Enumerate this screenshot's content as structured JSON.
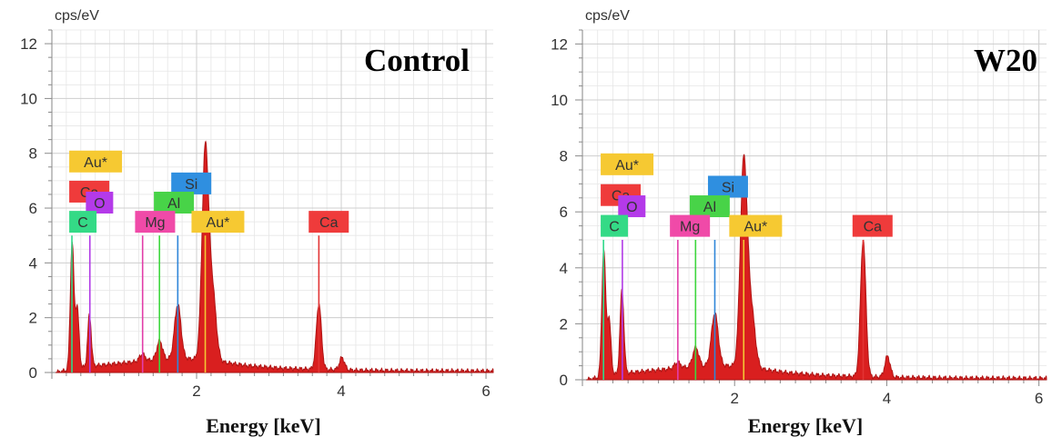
{
  "chart_data": [
    {
      "type": "line",
      "title": "Control",
      "xlabel": "Energy [keV]",
      "ylabel": "cps/eV",
      "xlim": [
        0,
        6.1
      ],
      "ylim": [
        0,
        12.5
      ],
      "xticks": [
        2,
        4,
        6
      ],
      "yticks": [
        0,
        2,
        4,
        6,
        8,
        10,
        12
      ],
      "grid": true,
      "series_color": "#d91f1f",
      "spectrum": {
        "baseline": [
          [
            0.05,
            0.0
          ],
          [
            0.25,
            0.1
          ],
          [
            0.6,
            0.25
          ],
          [
            1.0,
            0.35
          ],
          [
            1.4,
            0.45
          ],
          [
            1.9,
            0.5
          ],
          [
            2.3,
            0.4
          ],
          [
            2.7,
            0.25
          ],
          [
            3.2,
            0.15
          ],
          [
            3.6,
            0.12
          ],
          [
            4.2,
            0.08
          ],
          [
            5.0,
            0.06
          ],
          [
            6.1,
            0.05
          ]
        ],
        "peaks": [
          {
            "x": 0.28,
            "height": 4.6,
            "width": 0.025
          },
          {
            "x": 0.35,
            "height": 2.2,
            "width": 0.025
          },
          {
            "x": 0.52,
            "height": 1.9,
            "width": 0.025
          },
          {
            "x": 1.25,
            "height": 0.25,
            "width": 0.04
          },
          {
            "x": 1.49,
            "height": 0.7,
            "width": 0.04
          },
          {
            "x": 1.74,
            "height": 2.0,
            "width": 0.045
          },
          {
            "x": 2.12,
            "height": 7.6,
            "width": 0.045
          },
          {
            "x": 2.22,
            "height": 2.5,
            "width": 0.05
          },
          {
            "x": 3.69,
            "height": 2.4,
            "width": 0.035
          },
          {
            "x": 4.01,
            "height": 0.45,
            "width": 0.035
          }
        ]
      },
      "element_lines": [
        {
          "label": "C",
          "x": 0.277,
          "height": 5.0,
          "color": "#2fd98a"
        },
        {
          "label": "O",
          "x": 0.525,
          "height": 5.0,
          "color": "#b13ae6"
        },
        {
          "label": "Mg",
          "x": 1.254,
          "height": 5.0,
          "color": "#e23ea9"
        },
        {
          "label": "Al",
          "x": 1.487,
          "height": 5.0,
          "color": "#3ed63e"
        },
        {
          "label": "Si",
          "x": 1.74,
          "height": 5.0,
          "color": "#2f86d9"
        },
        {
          "label": "Au*",
          "x": 2.12,
          "height": 5.0,
          "color": "#f3c733"
        },
        {
          "label": "Ca",
          "x": 3.69,
          "height": 5.0,
          "color": "#e23434"
        }
      ],
      "tags": [
        {
          "label": "Au*",
          "x": 0.24,
          "y": 7.7,
          "color": "#f6c932"
        },
        {
          "label": "Ca",
          "x": 0.24,
          "y": 6.6,
          "color": "#ef3b3b"
        },
        {
          "label": "O",
          "x": 0.47,
          "y": 6.2,
          "color": "#b43ae9"
        },
        {
          "label": "C",
          "x": 0.24,
          "y": 5.5,
          "color": "#34da86"
        },
        {
          "label": "Si",
          "x": 1.65,
          "y": 6.9,
          "color": "#2f8fe0"
        },
        {
          "label": "Al",
          "x": 1.41,
          "y": 6.2,
          "color": "#48d348"
        },
        {
          "label": "Mg",
          "x": 1.15,
          "y": 5.5,
          "color": "#f04aa8"
        },
        {
          "label": "Au*",
          "x": 1.93,
          "y": 5.5,
          "color": "#f6c932"
        },
        {
          "label": "Ca",
          "x": 3.55,
          "y": 5.5,
          "color": "#ef3b3b"
        }
      ]
    },
    {
      "type": "line",
      "title": "W20",
      "xlabel": "Energy [keV]",
      "ylabel": "cps/eV",
      "xlim": [
        0,
        6.1
      ],
      "ylim": [
        0,
        12.5
      ],
      "xticks": [
        2,
        4,
        6
      ],
      "yticks": [
        0,
        2,
        4,
        6,
        8,
        10,
        12
      ],
      "grid": true,
      "series_color": "#d91f1f",
      "spectrum": {
        "baseline": [
          [
            0.05,
            0.0
          ],
          [
            0.25,
            0.1
          ],
          [
            0.6,
            0.25
          ],
          [
            1.0,
            0.35
          ],
          [
            1.4,
            0.45
          ],
          [
            1.9,
            0.5
          ],
          [
            2.3,
            0.4
          ],
          [
            2.7,
            0.25
          ],
          [
            3.2,
            0.15
          ],
          [
            3.6,
            0.12
          ],
          [
            4.2,
            0.08
          ],
          [
            5.0,
            0.06
          ],
          [
            6.1,
            0.05
          ]
        ],
        "peaks": [
          {
            "x": 0.28,
            "height": 4.5,
            "width": 0.025
          },
          {
            "x": 0.35,
            "height": 2.0,
            "width": 0.025
          },
          {
            "x": 0.52,
            "height": 3.0,
            "width": 0.025
          },
          {
            "x": 1.25,
            "height": 0.2,
            "width": 0.04
          },
          {
            "x": 1.49,
            "height": 0.7,
            "width": 0.04
          },
          {
            "x": 1.74,
            "height": 1.9,
            "width": 0.045
          },
          {
            "x": 2.12,
            "height": 7.3,
            "width": 0.045
          },
          {
            "x": 2.22,
            "height": 2.0,
            "width": 0.05
          },
          {
            "x": 3.69,
            "height": 4.9,
            "width": 0.035
          },
          {
            "x": 4.01,
            "height": 0.75,
            "width": 0.035
          }
        ]
      },
      "element_lines": [
        {
          "label": "C",
          "x": 0.277,
          "height": 5.0,
          "color": "#2fd98a"
        },
        {
          "label": "O",
          "x": 0.525,
          "height": 5.0,
          "color": "#b13ae6"
        },
        {
          "label": "Mg",
          "x": 1.254,
          "height": 5.0,
          "color": "#e23ea9"
        },
        {
          "label": "Al",
          "x": 1.487,
          "height": 5.0,
          "color": "#3ed63e"
        },
        {
          "label": "Si",
          "x": 1.74,
          "height": 5.0,
          "color": "#2f86d9"
        },
        {
          "label": "Au*",
          "x": 2.12,
          "height": 5.0,
          "color": "#f3c733"
        },
        {
          "label": "Ca",
          "x": 3.69,
          "height": 5.0,
          "color": "#e23434"
        }
      ],
      "tags": [
        {
          "label": "Au*",
          "x": 0.24,
          "y": 7.7,
          "color": "#f6c932"
        },
        {
          "label": "Ca",
          "x": 0.24,
          "y": 6.6,
          "color": "#ef3b3b"
        },
        {
          "label": "O",
          "x": 0.47,
          "y": 6.2,
          "color": "#b43ae9"
        },
        {
          "label": "C",
          "x": 0.24,
          "y": 5.5,
          "color": "#34da86"
        },
        {
          "label": "Si",
          "x": 1.65,
          "y": 6.9,
          "color": "#2f8fe0"
        },
        {
          "label": "Al",
          "x": 1.41,
          "y": 6.2,
          "color": "#48d348"
        },
        {
          "label": "Mg",
          "x": 1.15,
          "y": 5.5,
          "color": "#f04aa8"
        },
        {
          "label": "Au*",
          "x": 1.93,
          "y": 5.5,
          "color": "#f6c932"
        },
        {
          "label": "Ca",
          "x": 3.55,
          "y": 5.5,
          "color": "#ef3b3b"
        }
      ]
    }
  ]
}
